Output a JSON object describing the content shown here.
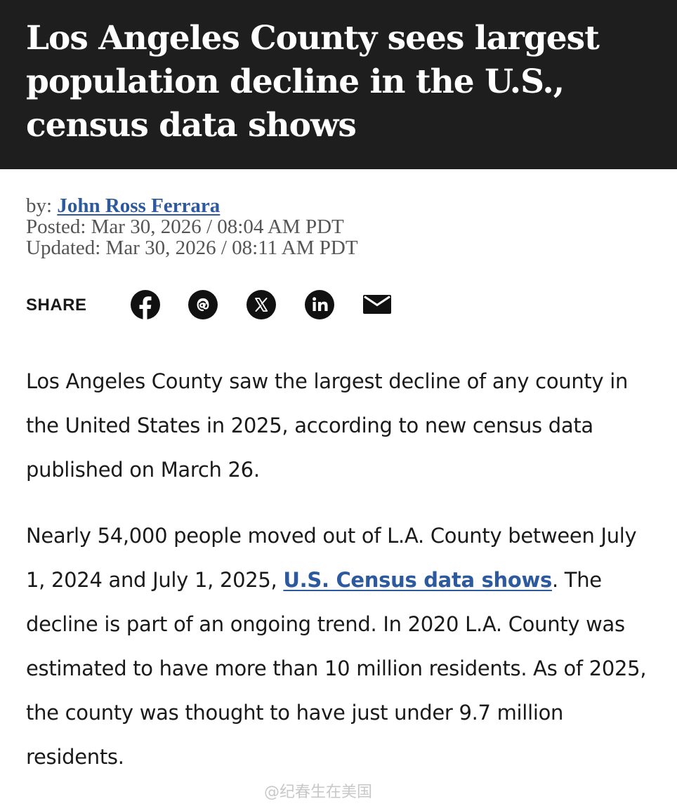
{
  "headline": "Los Angeles County sees largest population decline in the U.S., census data shows",
  "byline": {
    "prefix": "by:",
    "author": "John Ross Ferrara",
    "posted": "Posted: Mar 30, 2026 / 08:04 AM PDT",
    "updated": "Updated: Mar 30, 2026 / 08:11 AM PDT"
  },
  "share": {
    "label": "SHARE",
    "icons": [
      "facebook-icon",
      "threads-icon",
      "x-icon",
      "linkedin-icon",
      "email-icon"
    ]
  },
  "article": {
    "p1": "Los Angeles County saw the largest decline of any county in the United States in 2025, according to new census data published on March 26.",
    "p2_before": "Nearly 54,000 people moved out of L.A. County between July 1, 2024 and July 1, 2025, ",
    "p2_link": "U.S. Census data shows",
    "p2_after": ". The decline is part of an ongoing trend. In 2020 L.A. County was estimated to have more than 10 million residents. As of 2025, the county was thought to have just under 9.7 million residents."
  },
  "watermark": "@纪春生在美国",
  "colors": {
    "header_bg": "#1e1e1e",
    "link": "#2d5a9e",
    "meta_text": "#555555"
  }
}
